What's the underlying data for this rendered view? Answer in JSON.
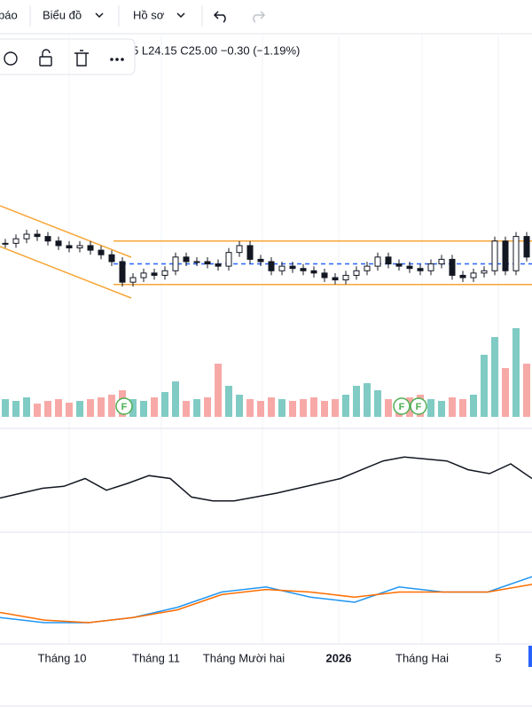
{
  "toolbar": {
    "items": [
      "báo",
      "Biểu đồ",
      "Hồ sơ"
    ]
  },
  "legend": "5 L24.15 C25.00 −0.30 (−1.19%)",
  "markers": [
    "F",
    "F",
    "F"
  ],
  "time_axis": [
    "Tháng 10",
    "Tháng 11",
    "Tháng Mười hai",
    "2026",
    "Tháng Hai",
    "5"
  ],
  "chart_data": {
    "type": "candlestick",
    "close": [
      25.11,
      25.13,
      25.15,
      25.14,
      25.12,
      25.1,
      25.09,
      25.1,
      25.08,
      25.06,
      25.03,
      24.94,
      24.96,
      24.98,
      24.97,
      24.99,
      25.05,
      25.03,
      25.03,
      25.02,
      25.01,
      25.07,
      25.1,
      25.04,
      25.03,
      24.99,
      25.01,
      25.0,
      24.99,
      24.98,
      24.96,
      24.95,
      24.97,
      24.99,
      25.01,
      25.05,
      25.02,
      25.01,
      25.0,
      24.99,
      25.02,
      25.04,
      24.97,
      24.96,
      24.98,
      24.99,
      25.12,
      24.99,
      25.14,
      25.05
    ],
    "ylim": [
      24.7,
      26.0
    ],
    "levels": [
      25.12,
      25.02,
      24.93
    ],
    "volume": [
      20,
      18,
      22,
      15,
      18,
      20,
      16,
      18,
      20,
      22,
      25,
      30,
      20,
      18,
      22,
      28,
      40,
      18,
      20,
      22,
      60,
      35,
      25,
      20,
      18,
      22,
      20,
      18,
      20,
      22,
      18,
      20,
      25,
      35,
      38,
      30,
      20,
      18,
      22,
      25,
      20,
      18,
      22,
      20,
      25,
      70,
      90,
      55,
      100,
      60
    ],
    "volume_ylim": [
      0,
      100
    ],
    "oscillator": [
      35,
      40,
      45,
      47,
      55,
      43,
      50,
      58,
      55,
      36,
      32,
      32,
      36,
      40,
      45,
      50,
      55,
      64,
      73,
      77,
      75,
      73,
      64,
      60,
      70,
      55
    ],
    "oscillator_ylim": [
      0,
      100
    ],
    "macd": [
      -0.5,
      -0.6,
      -0.6,
      -0.5,
      -0.3,
      0,
      0.1,
      -0.1,
      -0.2,
      0.1,
      0,
      0,
      0.3
    ],
    "signal": [
      -0.4,
      -0.55,
      -0.6,
      -0.5,
      -0.35,
      -0.05,
      0.05,
      0,
      -0.1,
      0,
      0,
      0,
      0.15
    ],
    "macd_ylim": [
      -1,
      1
    ]
  }
}
